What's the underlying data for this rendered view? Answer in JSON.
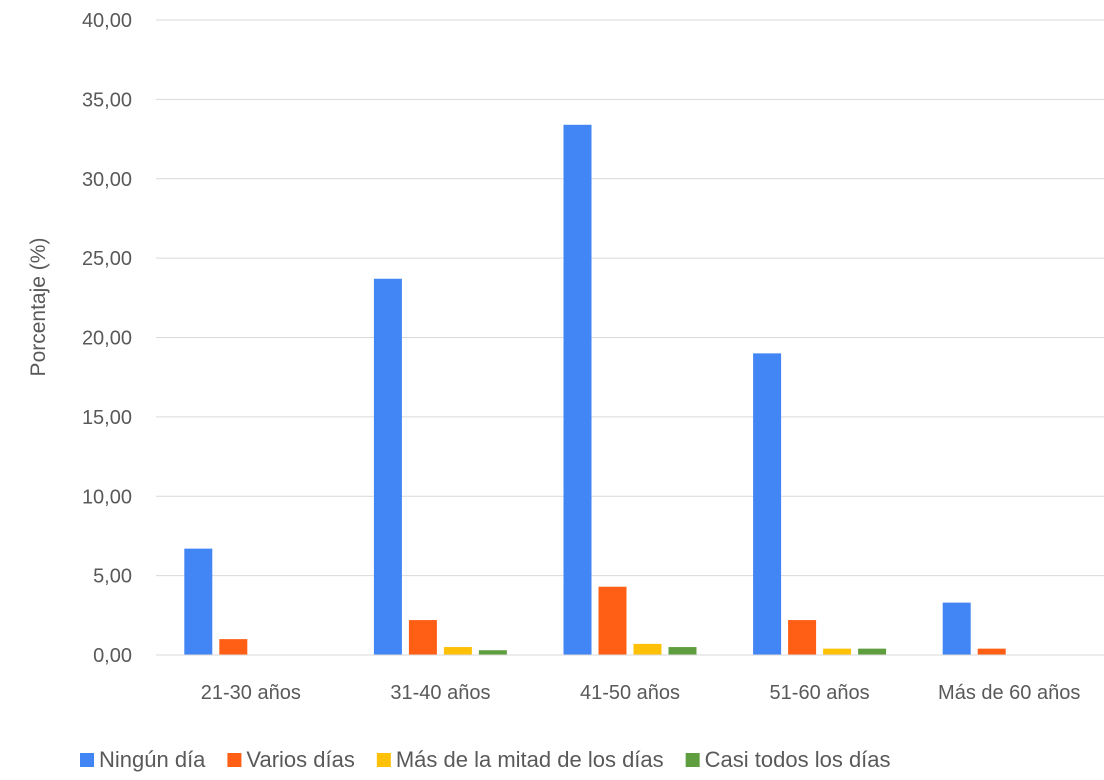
{
  "chart_data": {
    "type": "bar",
    "title": "",
    "xlabel": "",
    "ylabel": "Porcentaje (%)",
    "ylim": [
      0,
      40
    ],
    "yticks": [
      "0,00",
      "5,00",
      "10,00",
      "15,00",
      "20,00",
      "25,00",
      "30,00",
      "35,00",
      "40,00"
    ],
    "grid": true,
    "legend_position": "bottom",
    "categories": [
      "21-30 años",
      "31-40 años",
      "41-50 años",
      "51-60 años",
      "Más de 60 años"
    ],
    "series": [
      {
        "name": "Ningún día",
        "color": "#4285F4",
        "values": [
          6.7,
          23.7,
          33.4,
          19.0,
          3.3
        ]
      },
      {
        "name": "Varios días",
        "color": "#FF5F15",
        "values": [
          1.0,
          2.2,
          4.3,
          2.2,
          0.4
        ]
      },
      {
        "name": "Más de la mitad de los días",
        "color": "#FFC107",
        "values": [
          0.0,
          0.5,
          0.7,
          0.4,
          0.0
        ]
      },
      {
        "name": "Casi todos los días",
        "color": "#5E9E3F",
        "values": [
          0.0,
          0.3,
          0.5,
          0.4,
          0.0
        ]
      }
    ]
  }
}
